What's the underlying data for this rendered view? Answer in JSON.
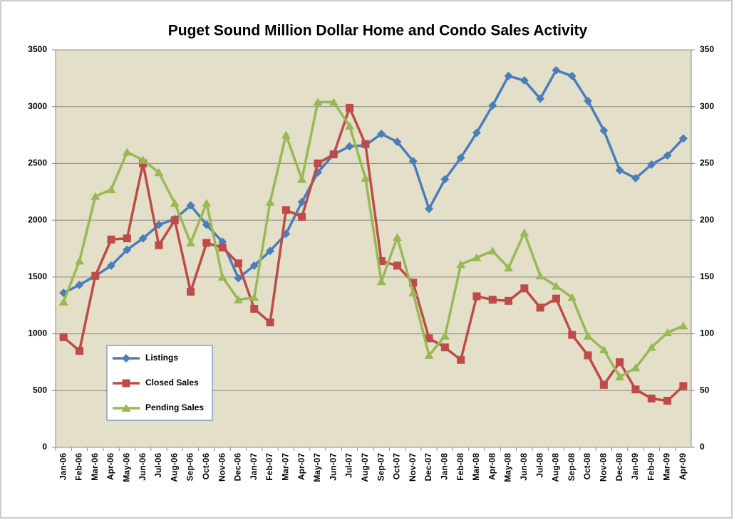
{
  "chart_data": {
    "type": "line",
    "title": "Puget Sound Million Dollar Home and Condo Sales Activity",
    "categories": [
      "Jan-06",
      "Feb-06",
      "Mar-06",
      "Apr-06",
      "May-06",
      "Jun-06",
      "Jul-06",
      "Aug-06",
      "Sep-06",
      "Oct-06",
      "Nov-06",
      "Dec-06",
      "Jan-07",
      "Feb-07",
      "Mar-07",
      "Apr-07",
      "May-07",
      "Jun-07",
      "Jul-07",
      "Aug-07",
      "Sep-07",
      "Oct-07",
      "Nov-07",
      "Dec-07",
      "Jan-08",
      "Feb-08",
      "Mar-08",
      "Apr-08",
      "May-08",
      "Jun-08",
      "Jul-08",
      "Aug-08",
      "Sep-08",
      "Oct-08",
      "Nov-08",
      "Dec-08",
      "Jan-09",
      "Feb-09",
      "Mar-09",
      "Apr-09"
    ],
    "series": [
      {
        "name": "Listings",
        "color": "#4a7ebb",
        "marker": "diamond",
        "values": [
          1360,
          1430,
          1510,
          1600,
          1740,
          1840,
          1960,
          2010,
          2130,
          1960,
          1810,
          1490,
          1600,
          1730,
          1880,
          2160,
          2420,
          2580,
          2650,
          2660,
          2760,
          2690,
          2520,
          2100,
          2360,
          2550,
          2770,
          3010,
          3270,
          3230,
          3070,
          3320,
          3270,
          3050,
          2790,
          2440,
          2370,
          2490,
          2570,
          2720
        ]
      },
      {
        "name": "Closed Sales",
        "color": "#be4b48",
        "marker": "square",
        "axis": "y2",
        "values": [
          97,
          85,
          151,
          183,
          184,
          250,
          178,
          200,
          137,
          180,
          176,
          162,
          122,
          110,
          209,
          203,
          250,
          258,
          299,
          267,
          164,
          160,
          145,
          96,
          88,
          77,
          133,
          130,
          129,
          140,
          123,
          131,
          99,
          81,
          55,
          75,
          51,
          43,
          41,
          54
        ]
      },
      {
        "name": "Pending Sales",
        "color": "#98b954",
        "marker": "triangle",
        "axis": "y2",
        "values": [
          128,
          164,
          221,
          227,
          260,
          253,
          242,
          215,
          180,
          215,
          150,
          130,
          132,
          216,
          275,
          236,
          304,
          304,
          283,
          237,
          146,
          185,
          136,
          81,
          98,
          161,
          167,
          173,
          158,
          189,
          151,
          142,
          132,
          98,
          86,
          62,
          70,
          88,
          101,
          107
        ]
      }
    ],
    "ylim": [
      0,
      3500
    ],
    "yticks": [
      0,
      500,
      1000,
      1500,
      2000,
      2500,
      3000,
      3500
    ],
    "y2lim": [
      0,
      350
    ],
    "y2ticks": [
      0,
      50,
      100,
      150,
      200,
      250,
      300,
      350
    ],
    "grid": true,
    "legend": "lower left"
  }
}
